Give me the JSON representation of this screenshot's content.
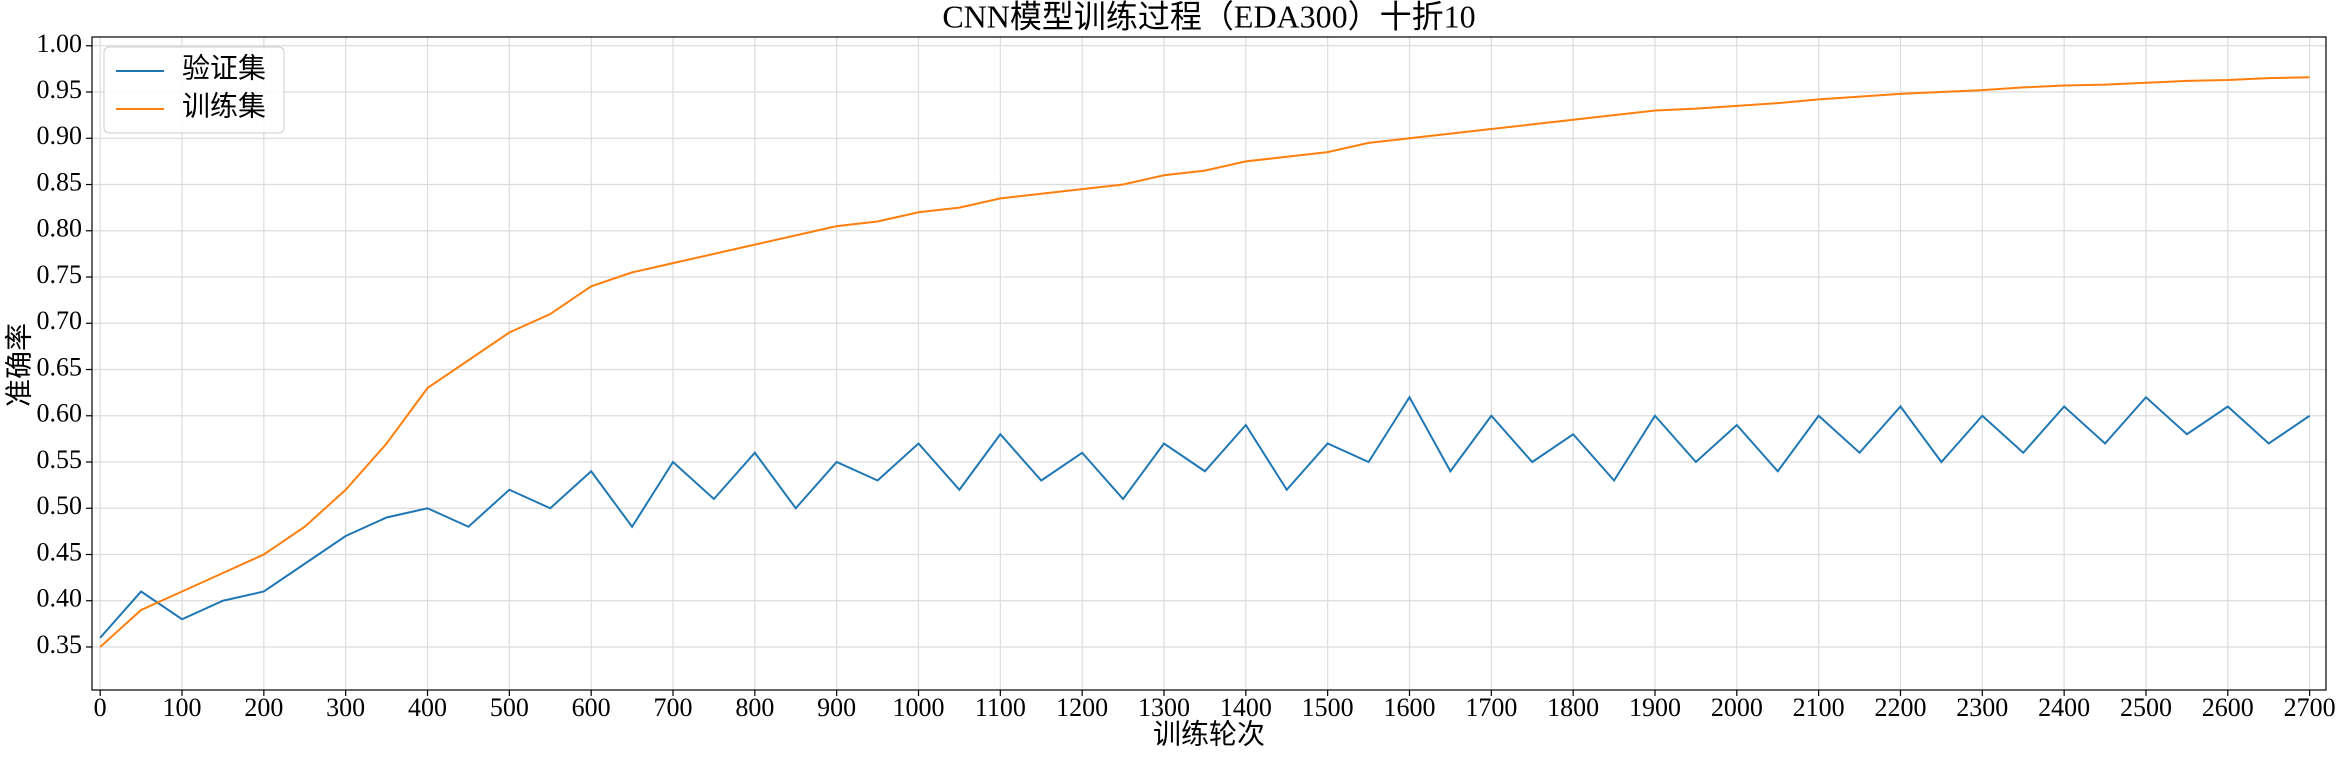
{
  "chart_data": {
    "type": "line",
    "title": "CNN模型训练过程（EDA300）十折10",
    "xlabel": "训练轮次",
    "ylabel": "准确率",
    "x": [
      0,
      50,
      100,
      150,
      200,
      250,
      300,
      350,
      400,
      450,
      500,
      550,
      600,
      650,
      700,
      750,
      800,
      850,
      900,
      950,
      1000,
      1050,
      1100,
      1150,
      1200,
      1250,
      1300,
      1350,
      1400,
      1450,
      1500,
      1550,
      1600,
      1650,
      1700,
      1750,
      1800,
      1850,
      1900,
      1950,
      2000,
      2050,
      2100,
      2150,
      2200,
      2250,
      2300,
      2350,
      2400,
      2450,
      2500,
      2550,
      2600,
      2650,
      2700
    ],
    "series": [
      {
        "name": "验证集",
        "color": "#1f77b4",
        "values": [
          0.36,
          0.41,
          0.38,
          0.4,
          0.41,
          0.44,
          0.47,
          0.49,
          0.5,
          0.48,
          0.52,
          0.5,
          0.54,
          0.48,
          0.55,
          0.51,
          0.56,
          0.5,
          0.55,
          0.53,
          0.57,
          0.52,
          0.58,
          0.53,
          0.56,
          0.51,
          0.57,
          0.54,
          0.59,
          0.52,
          0.57,
          0.55,
          0.62,
          0.54,
          0.6,
          0.55,
          0.58,
          0.53,
          0.6,
          0.55,
          0.59,
          0.54,
          0.6,
          0.56,
          0.61,
          0.55,
          0.6,
          0.56,
          0.61,
          0.57,
          0.62,
          0.58,
          0.61,
          0.57,
          0.6
        ]
      },
      {
        "name": "训练集",
        "color": "#ff7f0e",
        "values": [
          0.35,
          0.39,
          0.41,
          0.43,
          0.45,
          0.48,
          0.52,
          0.57,
          0.63,
          0.66,
          0.69,
          0.71,
          0.74,
          0.755,
          0.765,
          0.775,
          0.785,
          0.795,
          0.805,
          0.81,
          0.82,
          0.825,
          0.835,
          0.84,
          0.845,
          0.85,
          0.86,
          0.865,
          0.875,
          0.88,
          0.885,
          0.895,
          0.9,
          0.905,
          0.91,
          0.915,
          0.92,
          0.925,
          0.93,
          0.932,
          0.935,
          0.938,
          0.942,
          0.945,
          0.948,
          0.95,
          0.952,
          0.955,
          0.957,
          0.958,
          0.96,
          0.962,
          0.963,
          0.965,
          0.966
        ]
      }
    ],
    "xlim": [
      -10,
      2720
    ],
    "ylim": [
      0.3035,
      1.0095
    ],
    "xticks": [
      0,
      100,
      200,
      300,
      400,
      500,
      600,
      700,
      800,
      900,
      1000,
      1100,
      1200,
      1300,
      1400,
      1500,
      1600,
      1700,
      1800,
      1900,
      2000,
      2100,
      2200,
      2300,
      2400,
      2500,
      2600,
      2700
    ],
    "yticks": [
      0.35,
      {
        "value": 0.4,
        "label": "0.40"
      },
      0.45,
      {
        "value": 0.5,
        "label": "0.50"
      },
      0.55,
      {
        "value": 0.6,
        "label": "0.60"
      },
      0.65,
      {
        "value": 0.7,
        "label": "0.70"
      },
      0.75,
      {
        "value": 0.8,
        "label": "0.80"
      },
      0.85,
      {
        "value": 0.9,
        "label": "0.90"
      },
      0.95,
      {
        "value": 1,
        "label": "1.00"
      }
    ],
    "grid": true,
    "legend": "upper left"
  }
}
